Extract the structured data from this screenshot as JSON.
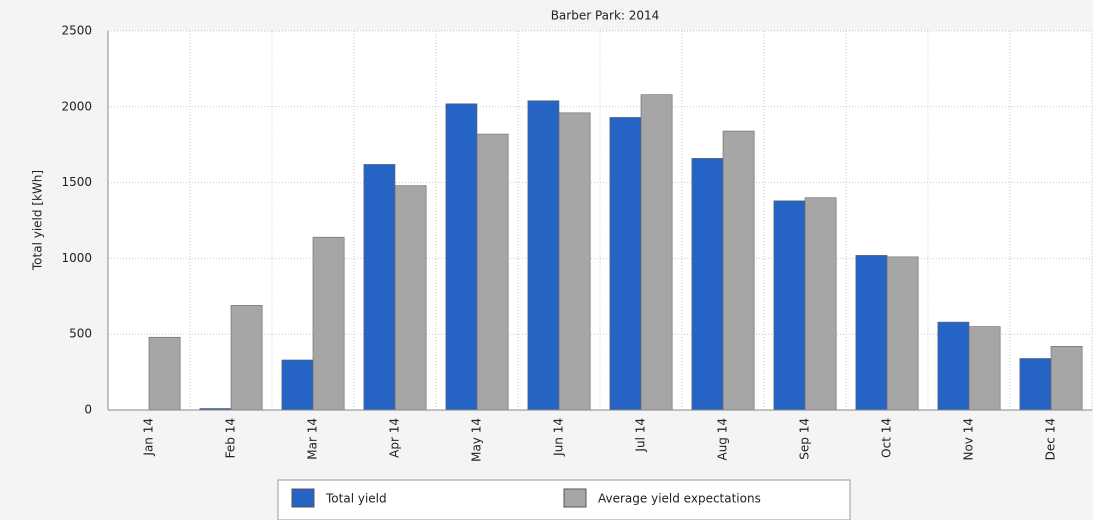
{
  "chart_data": {
    "type": "bar",
    "title": "Barber Park: 2014",
    "y_label": "Total yield [kWh]",
    "categories": [
      "Jan 14",
      "Feb 14",
      "Mar 14",
      "Apr 14",
      "May 14",
      "Jun 14",
      "Jul 14",
      "Aug 14",
      "Sep 14",
      "Oct 14",
      "Nov 14",
      "Dec 14"
    ],
    "series": [
      {
        "name": "Total yield",
        "color": "#2563c4",
        "values": [
          0,
          10,
          330,
          1620,
          2020,
          2040,
          1930,
          1660,
          1380,
          1020,
          580,
          340
        ]
      },
      {
        "name": "Average yield expectations",
        "color": "#a6a6a6",
        "values": [
          480,
          690,
          1140,
          1480,
          1820,
          1960,
          2080,
          1840,
          1400,
          1010,
          550,
          420
        ]
      }
    ],
    "ylim": [
      0,
      2500
    ],
    "yticks": [
      0,
      500,
      1000,
      1500,
      2000,
      2500
    ],
    "grid": true,
    "legend": "bottom"
  }
}
